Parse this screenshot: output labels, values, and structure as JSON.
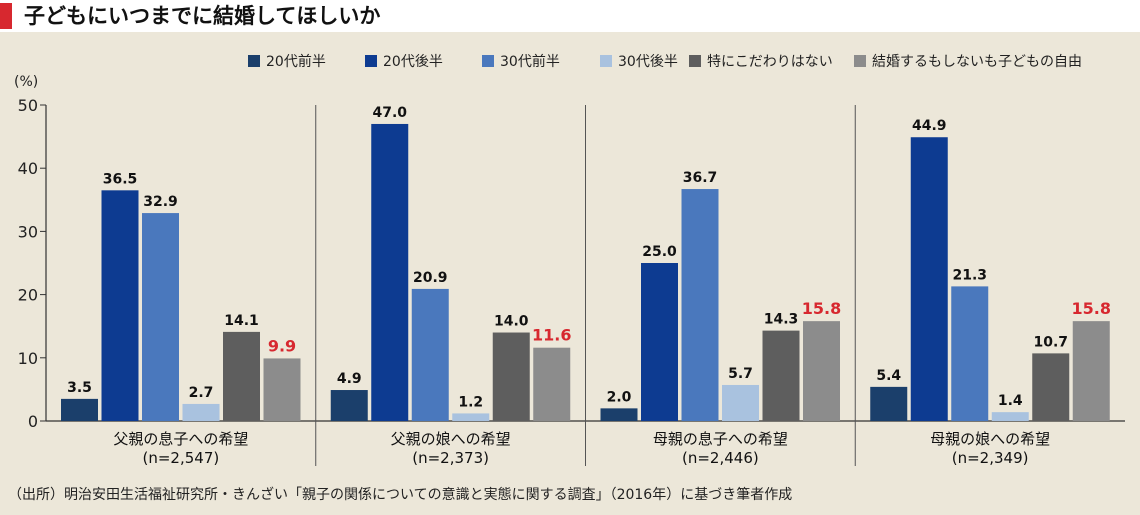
{
  "title": "子どもにいつまでに結婚してほしいか",
  "source": "（出所）明治安田生活福祉研究所・きんざい「親子の関係についての意識と実態に関する調査」（2016年）に基づき筆者作成",
  "colors": {
    "accent": "#d7282f",
    "series": [
      "#1b3f6b",
      "#0d3b91",
      "#4a78bd",
      "#a9c2df",
      "#5e5e5e",
      "#8c8c8c"
    ],
    "highlight_label": "#d7282f"
  },
  "chart_data": {
    "type": "bar",
    "unit_label": "(%)",
    "ylim": [
      0,
      50
    ],
    "yticks": [
      0,
      10,
      20,
      30,
      40,
      50
    ],
    "grid": false,
    "legend_position": "top-right",
    "categories": [
      {
        "name": "父親の息子への希望",
        "n": "(n=2,547)"
      },
      {
        "name": "父親の娘への希望",
        "n": "(n=2,373)"
      },
      {
        "name": "母親の息子への希望",
        "n": "(n=2,446)"
      },
      {
        "name": "母親の娘への希望",
        "n": "(n=2,349)"
      }
    ],
    "series": [
      {
        "name": "20代前半",
        "values": [
          3.5,
          4.9,
          2.0,
          5.4
        ]
      },
      {
        "name": "20代後半",
        "values": [
          36.5,
          47.0,
          25.0,
          44.9
        ]
      },
      {
        "name": "30代前半",
        "values": [
          32.9,
          20.9,
          36.7,
          21.3
        ]
      },
      {
        "name": "30代後半",
        "values": [
          2.7,
          1.2,
          5.7,
          1.4
        ]
      },
      {
        "name": "特にこだわりはない",
        "values": [
          14.1,
          14.0,
          14.3,
          10.7
        ]
      },
      {
        "name": "結婚するもしないも子どもの自由",
        "values": [
          9.9,
          11.6,
          15.8,
          15.8
        ],
        "highlight": true
      }
    ]
  }
}
